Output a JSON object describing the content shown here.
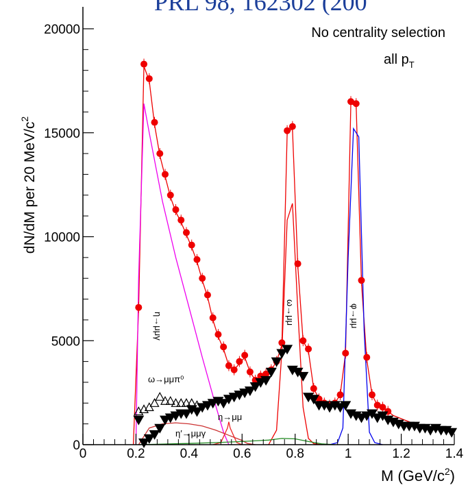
{
  "banner_text": "PRL 98, 162302 (200",
  "chart_data": {
    "type": "scatter",
    "title": "",
    "annotation_line1": "No centrality selection",
    "annotation_line2": "all p",
    "annotation_line2_sub": "T",
    "xlabel": "M (GeV/c",
    "xlabel_sup": "2",
    "xlabel_end": ")",
    "ylabel": "dN/dM per 20 MeV/c",
    "ylabel_sup": "2",
    "xlim": [
      0,
      1.4
    ],
    "ylim": [
      0,
      20000
    ],
    "x_ticks": [
      0,
      0.2,
      0.4,
      0.6,
      0.8,
      1.0,
      1.2,
      1.4
    ],
    "x_tick_labels": [
      "0",
      "0.2",
      "0.4",
      "0.6",
      "0.8",
      "1",
      "1.2",
      "1.4"
    ],
    "y_ticks": [
      0,
      5000,
      10000,
      15000,
      20000
    ],
    "y_tick_labels": [
      "0",
      "5000",
      "10000",
      "15000",
      "20000"
    ],
    "grid": false,
    "series": [
      {
        "marker": "circle",
        "color": "#ee0000",
        "x": [
          0.21,
          0.23,
          0.25,
          0.27,
          0.29,
          0.31,
          0.33,
          0.35,
          0.37,
          0.39,
          0.41,
          0.43,
          0.45,
          0.47,
          0.49,
          0.51,
          0.53,
          0.55,
          0.57,
          0.59,
          0.61,
          0.63,
          0.65,
          0.67,
          0.69,
          0.71,
          0.73,
          0.75,
          0.77,
          0.79,
          0.81,
          0.83,
          0.85,
          0.87,
          0.89,
          0.91,
          0.93,
          0.95,
          0.97,
          0.99,
          1.01,
          1.03,
          1.05,
          1.07,
          1.09,
          1.11,
          1.13,
          1.15
        ],
        "y": [
          6600,
          18300,
          17600,
          15500,
          14000,
          13000,
          12000,
          11300,
          10800,
          10200,
          9600,
          8900,
          8000,
          7200,
          6100,
          5300,
          4700,
          3800,
          3600,
          4000,
          4300,
          3500,
          3100,
          3300,
          3400,
          3600,
          4000,
          4900,
          15100,
          15300,
          8700,
          5000,
          4600,
          2700,
          2200,
          2000,
          1900,
          2000,
          2400,
          4400,
          16500,
          16400,
          7900,
          4200,
          2400,
          1900,
          1800,
          1600
        ]
      },
      {
        "marker": "triangle-down",
        "color": "#000000",
        "x": [
          0.21,
          0.23,
          0.25,
          0.27,
          0.29,
          0.31,
          0.33,
          0.35,
          0.37,
          0.39,
          0.41,
          0.43,
          0.45,
          0.47,
          0.49,
          0.51,
          0.53,
          0.55,
          0.57,
          0.59,
          0.61,
          0.63,
          0.65,
          0.67,
          0.69,
          0.71,
          0.73,
          0.75,
          0.77,
          0.79,
          0.81,
          0.83,
          0.85,
          0.87,
          0.89,
          0.91,
          0.93,
          0.95,
          0.97,
          0.99,
          1.01,
          1.03,
          1.05,
          1.07,
          1.09,
          1.11,
          1.13,
          1.15,
          1.17,
          1.19,
          1.21,
          1.23,
          1.25,
          1.27,
          1.29,
          1.31,
          1.33,
          1.35,
          1.37,
          1.39
        ],
        "y": [
          1200,
          100,
          300,
          500,
          800,
          1200,
          1300,
          1400,
          1500,
          1500,
          1700,
          1600,
          1800,
          1900,
          2000,
          2100,
          2000,
          2200,
          2300,
          2400,
          2500,
          2600,
          2800,
          3000,
          3100,
          3500,
          4000,
          4400,
          4600,
          3600,
          3500,
          3300,
          2300,
          2200,
          1900,
          1900,
          1800,
          1900,
          1800,
          1900,
          1500,
          1400,
          1300,
          1400,
          1500,
          1300,
          1400,
          1200,
          1100,
          1000,
          900,
          900,
          900,
          800,
          800,
          700,
          800,
          700,
          700,
          600
        ]
      },
      {
        "marker": "triangle-up-open",
        "color": "#000000",
        "x": [
          0.21,
          0.23,
          0.25,
          0.27,
          0.29,
          0.31,
          0.33,
          0.35,
          0.37,
          0.39,
          0.41,
          0.43
        ],
        "y": [
          1600,
          1700,
          1800,
          2000,
          2300,
          2100,
          2100,
          2000,
          2000,
          2000,
          2000,
          1900
        ]
      },
      {
        "marker": "line",
        "color": "#ee0000",
        "x": [
          0.19,
          0.21,
          0.23,
          0.25,
          0.27,
          0.29,
          0.31,
          0.33,
          0.35,
          0.37,
          0.39,
          0.41,
          0.43,
          0.45,
          0.47,
          0.49,
          0.51,
          0.53,
          0.55,
          0.57,
          0.59,
          0.61,
          0.63,
          0.65,
          0.67,
          0.69,
          0.71,
          0.73,
          0.75,
          0.77,
          0.79,
          0.81,
          0.83,
          0.85,
          0.87,
          0.89,
          0.91,
          0.93,
          0.95,
          0.97,
          0.99,
          1.01,
          1.03,
          1.05,
          1.07,
          1.09,
          1.11,
          1.13,
          1.15,
          1.17,
          1.19,
          1.21,
          1.23,
          1.25,
          1.27,
          1.29,
          1.31,
          1.33,
          1.35,
          1.37,
          1.39
        ],
        "y": [
          0,
          6500,
          18200,
          17500,
          15400,
          13900,
          12900,
          11900,
          11200,
          10700,
          10100,
          9500,
          8800,
          7900,
          7100,
          6000,
          5200,
          4600,
          3800,
          3600,
          3900,
          4200,
          3500,
          3100,
          3300,
          3400,
          3600,
          4000,
          4800,
          15000,
          15200,
          8600,
          5000,
          4500,
          2700,
          2200,
          2000,
          1900,
          2000,
          2400,
          4400,
          16400,
          16300,
          7800,
          4100,
          2400,
          1900,
          1800,
          1600,
          1400,
          1300,
          1200,
          1100,
          1000,
          900,
          900,
          800,
          800,
          700,
          700,
          600
        ]
      },
      {
        "marker": "line",
        "color": "#ee00ee",
        "name": "η→μμγ",
        "x": [
          0.2,
          0.21,
          0.23,
          0.25,
          0.3,
          0.35,
          0.4,
          0.45,
          0.5,
          0.53,
          0.55
        ],
        "y": [
          0,
          8000,
          16400,
          15000,
          11700,
          9000,
          6600,
          4200,
          1900,
          600,
          0
        ]
      },
      {
        "marker": "line",
        "color": "#ee0000",
        "name": "ω→μμ",
        "x": [
          0.7,
          0.73,
          0.75,
          0.77,
          0.79,
          0.81,
          0.83,
          0.85,
          0.87,
          0.9
        ],
        "y": [
          0,
          700,
          4500,
          10800,
          11600,
          6500,
          1800,
          300,
          50,
          0
        ]
      },
      {
        "marker": "line",
        "color": "#0000ee",
        "name": "φ→μμ",
        "x": [
          0.93,
          0.96,
          0.98,
          1.0,
          1.02,
          1.04,
          1.06,
          1.08,
          1.1,
          1.13
        ],
        "y": [
          0,
          100,
          800,
          9000,
          15200,
          14800,
          5500,
          600,
          100,
          0
        ]
      },
      {
        "marker": "line",
        "color": "#cc3333",
        "name": "ω→μμπ⁰",
        "x": [
          0.21,
          0.25,
          0.3,
          0.35,
          0.4,
          0.45,
          0.5,
          0.55,
          0.6,
          0.62,
          0.65
        ],
        "y": [
          0,
          800,
          1000,
          1050,
          1000,
          900,
          700,
          450,
          200,
          60,
          0
        ]
      },
      {
        "marker": "line",
        "color": "#ee2222",
        "name": "η→μμ",
        "x": [
          0.49,
          0.52,
          0.545,
          0.55,
          0.555,
          0.58,
          0.6
        ],
        "y": [
          0,
          100,
          800,
          1100,
          800,
          100,
          0
        ]
      },
      {
        "marker": "line",
        "color": "#228b22",
        "name": "η′→μμγ",
        "x": [
          0.21,
          0.3,
          0.4,
          0.5,
          0.6,
          0.7,
          0.75,
          0.8,
          0.85,
          0.9,
          0.95
        ],
        "y": [
          0,
          30,
          60,
          100,
          150,
          220,
          300,
          280,
          150,
          40,
          0
        ]
      }
    ],
    "curve_labels": [
      {
        "text": "η→μμγ",
        "color": "#ee00ee"
      },
      {
        "text": "ω→μμ",
        "color": "#ee0000"
      },
      {
        "text": "φ→μμ",
        "color": "#0000ee"
      },
      {
        "text": "ω→μμπ⁰",
        "color": "#cc3333"
      },
      {
        "text": "η→μμ",
        "color": "#ee2222"
      },
      {
        "text": "η′→μμγ",
        "color": "#228b22"
      }
    ]
  }
}
